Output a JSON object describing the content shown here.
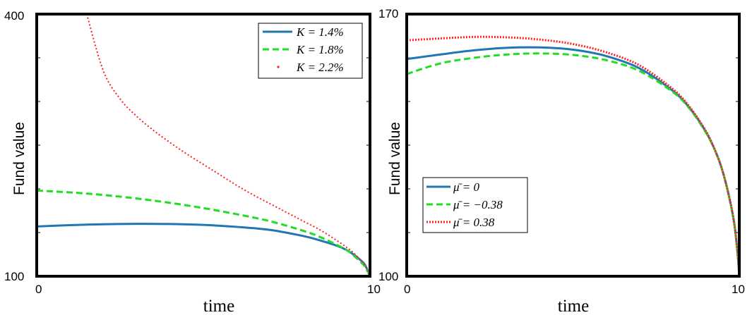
{
  "chart_data": [
    {
      "type": "line",
      "xlabel": "time",
      "ylabel": "Fund value",
      "xlim": [
        0,
        10
      ],
      "ylim": [
        100,
        400
      ],
      "xtick_labels": [
        "0",
        "10"
      ],
      "ytick_labels": [
        "100",
        "400"
      ],
      "legend_position": "top-right",
      "series": [
        {
          "name": "K = 1.4%",
          "style": "solid",
          "color": "#1f77b4",
          "x": [
            0,
            1,
            2,
            3,
            4,
            5,
            6,
            7,
            8,
            8.5,
            9,
            9.3,
            9.5,
            9.7,
            9.85,
            10
          ],
          "y": [
            157,
            158.5,
            159.5,
            160,
            159.8,
            158.8,
            156.5,
            153,
            146,
            141,
            135,
            130,
            125,
            119,
            113,
            100
          ]
        },
        {
          "name": "K = 1.8%",
          "style": "dashed",
          "color": "#22dd22",
          "x": [
            0,
            1,
            2,
            3,
            4,
            5,
            6,
            7,
            8,
            8.5,
            9,
            9.3,
            9.5,
            9.7,
            9.85,
            10
          ],
          "y": [
            198,
            196,
            193,
            189,
            184,
            178,
            171,
            163,
            152,
            145,
            136,
            130,
            124,
            117,
            111,
            100
          ]
        },
        {
          "name": "K = 2.2%",
          "style": "dotted",
          "color": "#ff2020",
          "x": [
            1.5,
            2,
            2.5,
            3,
            3.5,
            4,
            4.5,
            5,
            5.5,
            6,
            6.5,
            7,
            7.5,
            8,
            8.5,
            9,
            9.3,
            9.5,
            9.7,
            9.85,
            10
          ],
          "y": [
            400,
            335,
            303,
            283,
            267,
            253,
            240,
            228,
            216,
            204,
            193,
            183,
            173,
            163,
            153,
            141,
            133,
            127,
            119,
            112,
            100
          ]
        }
      ]
    },
    {
      "type": "line",
      "xlabel": "time",
      "ylabel": "Fund value",
      "xlim": [
        0,
        10
      ],
      "ylim": [
        100,
        170
      ],
      "xtick_labels": [
        "0",
        "10"
      ],
      "ytick_labels": [
        "100",
        "170"
      ],
      "legend_position": "bottom-left",
      "series": [
        {
          "name": "μ̄ = 0",
          "style": "solid",
          "color": "#1f77b4",
          "x": [
            0,
            1,
            2,
            3,
            4,
            5,
            6,
            7,
            8,
            8.5,
            9,
            9.3,
            9.5,
            9.7,
            9.85,
            9.95,
            10
          ],
          "y": [
            158,
            159.2,
            160.3,
            161,
            161.1,
            160.5,
            158.8,
            155.5,
            149.5,
            145,
            138.5,
            133,
            128,
            121,
            114,
            106,
            100
          ]
        },
        {
          "name": "μ̄ = −0.38",
          "style": "dashed",
          "color": "#22dd22",
          "x": [
            0,
            1,
            2,
            3,
            4,
            5,
            6,
            7,
            8,
            8.5,
            9,
            9.3,
            9.5,
            9.7,
            9.85,
            9.95,
            10
          ],
          "y": [
            154,
            156.8,
            158.3,
            159.2,
            159.5,
            159.1,
            157.7,
            154.8,
            149.2,
            144.8,
            138.3,
            133,
            128,
            121,
            114,
            106,
            100
          ]
        },
        {
          "name": "μ̄ = 0.38",
          "style": "dotted",
          "color": "#ff2020",
          "x": [
            0,
            1,
            2,
            3,
            4,
            5,
            6,
            7,
            8,
            8.5,
            9,
            9.3,
            9.5,
            9.7,
            9.85,
            9.95,
            10
          ],
          "y": [
            163,
            163.5,
            163.9,
            163.8,
            163.2,
            162,
            159.8,
            156.3,
            150,
            145.3,
            138.7,
            133,
            128,
            121,
            114,
            106,
            100
          ]
        }
      ]
    }
  ]
}
